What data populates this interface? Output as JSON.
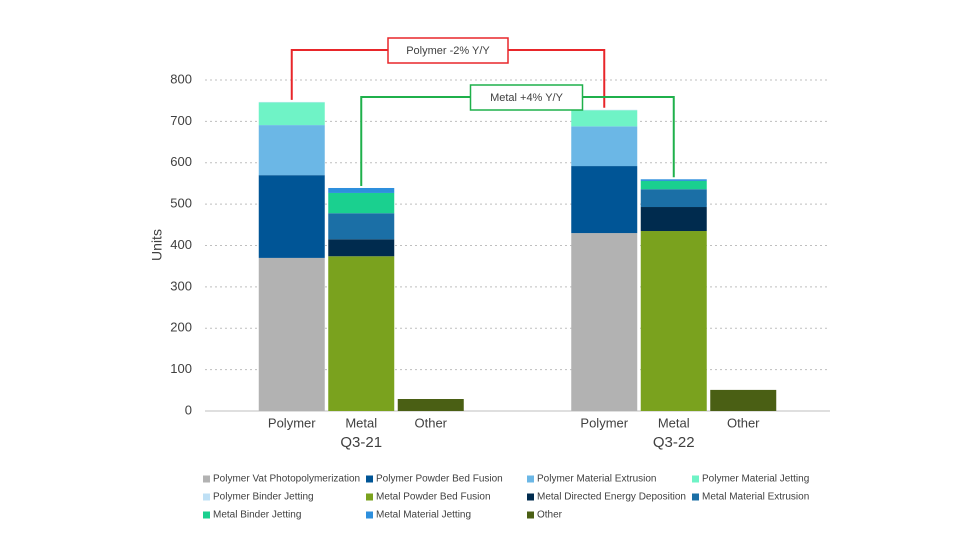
{
  "chart_data": {
    "type": "stacked-bar",
    "y_label": "Units",
    "groups": [
      "Q3-21",
      "Q3-22"
    ],
    "categories": [
      "Polymer",
      "Metal",
      "Other",
      "Polymer",
      "Metal",
      "Other"
    ],
    "ylim": [
      0,
      800
    ],
    "yticks": [
      0,
      100,
      200,
      300,
      400,
      500,
      600,
      700,
      800
    ],
    "grid": true,
    "annotations": [
      {
        "text": "Polymer -2% Y/Y",
        "color": "#e8262a"
      },
      {
        "text": "Metal +4% Y/Y",
        "color": "#1fb04b"
      }
    ],
    "series": [
      {
        "name": "Polymer Vat Photopolymerization",
        "color": "#b2b2b2",
        "values": [
          370,
          null,
          null,
          430,
          null,
          null
        ]
      },
      {
        "name": "Polymer Powder Bed Fusion",
        "color": "#005596",
        "values": [
          200,
          null,
          null,
          162,
          null,
          null
        ]
      },
      {
        "name": "Polymer Material Extrusion",
        "color": "#6bb7e6",
        "values": [
          121,
          null,
          null,
          96,
          null,
          null
        ]
      },
      {
        "name": "Polymer Material Jetting",
        "color": "#6ff3c6",
        "values": [
          55,
          null,
          null,
          39,
          null,
          null
        ]
      },
      {
        "name": "Polymer Binder Jetting",
        "color": "#bfe0f5",
        "values": [
          1,
          null,
          null,
          1,
          null,
          null
        ]
      },
      {
        "name": "Metal Powder Bed Fusion",
        "color": "#7aa21e",
        "values": [
          null,
          374,
          null,
          null,
          435,
          null
        ]
      },
      {
        "name": "Metal Directed Energy Deposition",
        "color": "#002b4e",
        "values": [
          null,
          41,
          null,
          null,
          58,
          null
        ]
      },
      {
        "name": "Metal Material Extrusion",
        "color": "#1b6fa6",
        "values": [
          null,
          63,
          null,
          null,
          43,
          null
        ]
      },
      {
        "name": "Metal Binder Jetting",
        "color": "#1ad08f",
        "values": [
          null,
          49,
          null,
          null,
          20,
          null
        ]
      },
      {
        "name": "Metal Material Jetting",
        "color": "#2d8fdd",
        "values": [
          null,
          12,
          null,
          null,
          4,
          null
        ]
      },
      {
        "name": "Other",
        "color": "#4a5f14",
        "values": [
          null,
          null,
          29,
          null,
          null,
          51
        ]
      }
    ]
  }
}
